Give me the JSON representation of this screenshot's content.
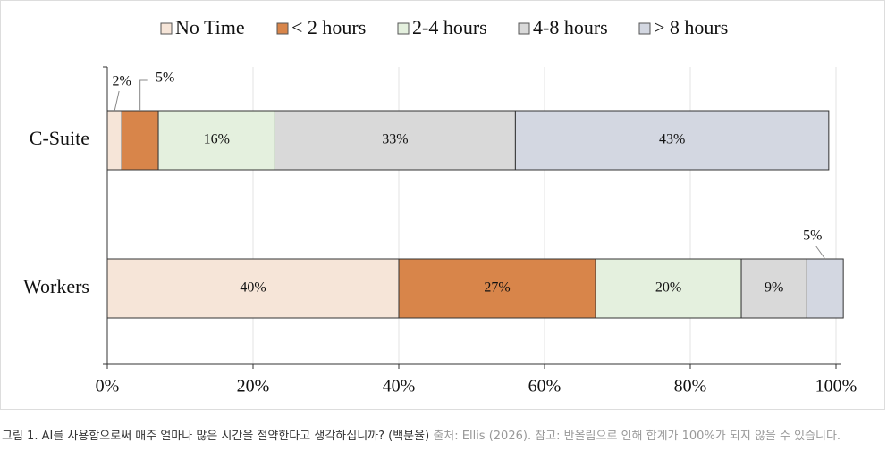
{
  "chart_data": {
    "type": "stacked_barh",
    "categories": [
      "C-Suite",
      "Workers"
    ],
    "series": [
      {
        "name": "No Time",
        "color": "#f6e5d8",
        "values": [
          2,
          40
        ],
        "value_labels": [
          "2%",
          "40%"
        ]
      },
      {
        "name": "< 2 hours",
        "color": "#d8854a",
        "values": [
          5,
          27
        ],
        "value_labels": [
          "5%",
          "27%"
        ]
      },
      {
        "name": "2-4 hours",
        "color": "#e4f0de",
        "values": [
          16,
          20
        ],
        "value_labels": [
          "16%",
          "20%"
        ]
      },
      {
        "name": "4-8 hours",
        "color": "#d9d9d9",
        "values": [
          33,
          9
        ],
        "value_labels": [
          "33%",
          "9%"
        ]
      },
      {
        "name": "> 8 hours",
        "color": "#d3d7e1",
        "values": [
          43,
          5
        ],
        "value_labels": [
          "43%",
          "5%"
        ]
      }
    ],
    "xlim": [
      0,
      100
    ],
    "xticks": [
      {
        "value": 0,
        "label": "0%"
      },
      {
        "value": 20,
        "label": "20%"
      },
      {
        "value": 40,
        "label": "40%"
      },
      {
        "value": 60,
        "label": "60%"
      },
      {
        "value": 80,
        "label": "80%"
      },
      {
        "value": 100,
        "label": "100%"
      }
    ],
    "grid": true
  },
  "caption": {
    "title": "그림 1. AI를 사용함으로써 매주 얼마나 많은 시간을 절약한다고 생각하십니까? (백분율)",
    "note": "출처: Ellis (2026). 참고: 반올림으로 인해 합계가 100%가 되지 않을 수 있습니다."
  }
}
